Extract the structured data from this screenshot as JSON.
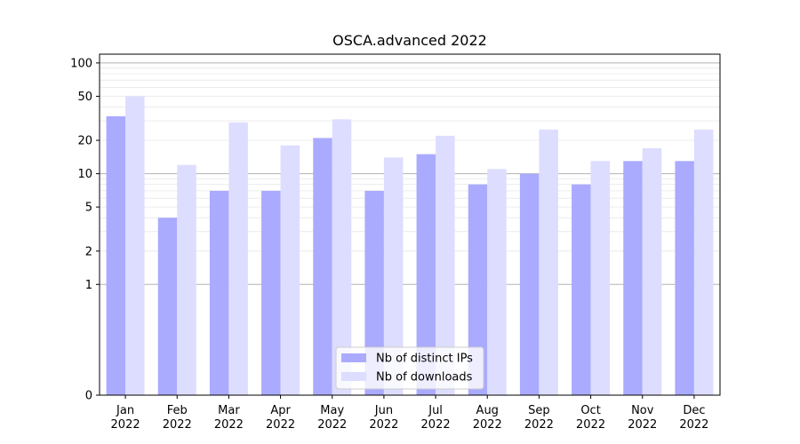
{
  "chart_data": {
    "type": "bar",
    "title": "OSCA.advanced 2022",
    "xlabel": "",
    "ylabel": "",
    "y_scale": "symlog",
    "y_linthresh": 1,
    "ylim": [
      0,
      120
    ],
    "y_ticks": [
      0,
      1,
      2,
      5,
      10,
      20,
      50,
      100
    ],
    "categories": [
      {
        "month": "Jan",
        "year": "2022"
      },
      {
        "month": "Feb",
        "year": "2022"
      },
      {
        "month": "Mar",
        "year": "2022"
      },
      {
        "month": "Apr",
        "year": "2022"
      },
      {
        "month": "May",
        "year": "2022"
      },
      {
        "month": "Jun",
        "year": "2022"
      },
      {
        "month": "Jul",
        "year": "2022"
      },
      {
        "month": "Aug",
        "year": "2022"
      },
      {
        "month": "Sep",
        "year": "2022"
      },
      {
        "month": "Oct",
        "year": "2022"
      },
      {
        "month": "Nov",
        "year": "2022"
      },
      {
        "month": "Dec",
        "year": "2022"
      }
    ],
    "series": [
      {
        "name": "Nb of distinct IPs",
        "color": "#aaaaff",
        "values": [
          33,
          4,
          7,
          7,
          21,
          7,
          15,
          8,
          10,
          8,
          13,
          13
        ]
      },
      {
        "name": "Nb of downloads",
        "color": "#ddddff",
        "values": [
          50,
          12,
          29,
          18,
          31,
          14,
          22,
          11,
          25,
          13,
          17,
          25
        ]
      }
    ],
    "grid": true,
    "legend_position": "bottom-center"
  }
}
